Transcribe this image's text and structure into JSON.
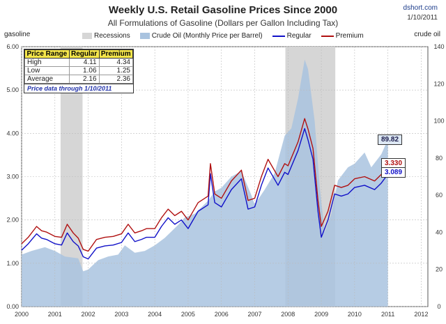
{
  "header": {
    "title": "Weekly U.S. Retail Gasoline Prices Since 2000",
    "subtitle": "All Formulations of Gasoline (Dollars per Gallon Including Tax)",
    "source": "dshort.com",
    "date": "1/10/2011"
  },
  "legend": {
    "recessions": "Recessions",
    "crude": "Crude Oil (Monthly Price per Barrel)",
    "regular": "Regular",
    "premium": "Premium"
  },
  "colors": {
    "regular": "#1010c8",
    "premium": "#b01010",
    "crude": "#a9c3df",
    "recession": "#d6d6d6"
  },
  "table": {
    "headers": [
      "Price Range",
      "Regular",
      "Premium"
    ],
    "rows": [
      [
        "High",
        "4.11",
        "4.34"
      ],
      [
        "Low",
        "1.06",
        "1.25"
      ],
      [
        "Average",
        "2.16",
        "2.36"
      ]
    ],
    "note": "Price data through 1/10/2011"
  },
  "callouts": {
    "crude": "89.82",
    "premium": "3.330",
    "regular": "3.089"
  },
  "chart_data": {
    "type": "line",
    "title": "Weekly U.S. Retail Gasoline Prices Since 2000",
    "ylabel": "gasoline",
    "y2label": "crude oil",
    "xlim": [
      2000,
      2012.2
    ],
    "ylim": [
      0,
      6
    ],
    "y2lim": [
      0,
      140
    ],
    "x_ticks": [
      "2000",
      "2001",
      "2002",
      "2003",
      "2004",
      "2005",
      "2006",
      "2007",
      "2008",
      "2009",
      "2010",
      "2011",
      "2012"
    ],
    "y_ticks": [
      "0.00",
      "1.00",
      "2.00",
      "3.00",
      "4.00",
      "5.00",
      "6.00"
    ],
    "y2_ticks": [
      "0",
      "20",
      "40",
      "60",
      "80",
      "100",
      "120",
      "140"
    ],
    "recessions": [
      [
        2001.17,
        2001.83
      ],
      [
        2007.92,
        2009.42
      ]
    ],
    "series": [
      {
        "name": "Regular",
        "x": [
          2000.0,
          2000.2,
          2000.45,
          2000.6,
          2000.75,
          2001.0,
          2001.2,
          2001.37,
          2001.55,
          2001.7,
          2001.85,
          2002.0,
          2002.25,
          2002.5,
          2002.75,
          2003.0,
          2003.2,
          2003.4,
          2003.6,
          2003.75,
          2004.0,
          2004.2,
          2004.4,
          2004.6,
          2004.8,
          2005.0,
          2005.3,
          2005.6,
          2005.67,
          2005.8,
          2006.0,
          2006.3,
          2006.6,
          2006.8,
          2007.0,
          2007.2,
          2007.4,
          2007.7,
          2007.9,
          2008.0,
          2008.3,
          2008.5,
          2008.6,
          2008.75,
          2008.9,
          2009.0,
          2009.2,
          2009.4,
          2009.6,
          2009.8,
          2010.0,
          2010.3,
          2010.6,
          2010.8,
          2011.03
        ],
        "values": [
          1.3,
          1.45,
          1.68,
          1.58,
          1.55,
          1.45,
          1.42,
          1.7,
          1.5,
          1.4,
          1.15,
          1.1,
          1.35,
          1.4,
          1.42,
          1.48,
          1.7,
          1.5,
          1.55,
          1.6,
          1.6,
          1.85,
          2.05,
          1.9,
          2.0,
          1.8,
          2.2,
          2.35,
          3.07,
          2.4,
          2.3,
          2.7,
          2.95,
          2.25,
          2.3,
          2.8,
          3.2,
          2.8,
          3.1,
          3.05,
          3.6,
          4.11,
          3.85,
          3.4,
          2.2,
          1.6,
          2.0,
          2.6,
          2.55,
          2.6,
          2.75,
          2.8,
          2.7,
          2.85,
          3.09
        ]
      },
      {
        "name": "Premium",
        "x": [
          2000.0,
          2000.2,
          2000.45,
          2000.6,
          2000.75,
          2001.0,
          2001.2,
          2001.37,
          2001.55,
          2001.7,
          2001.85,
          2002.0,
          2002.25,
          2002.5,
          2002.75,
          2003.0,
          2003.2,
          2003.4,
          2003.6,
          2003.75,
          2004.0,
          2004.2,
          2004.4,
          2004.6,
          2004.8,
          2005.0,
          2005.3,
          2005.6,
          2005.67,
          2005.8,
          2006.0,
          2006.3,
          2006.6,
          2006.8,
          2007.0,
          2007.2,
          2007.4,
          2007.7,
          2007.9,
          2008.0,
          2008.3,
          2008.5,
          2008.6,
          2008.75,
          2008.9,
          2009.0,
          2009.2,
          2009.4,
          2009.6,
          2009.8,
          2010.0,
          2010.3,
          2010.6,
          2010.8,
          2011.03
        ],
        "values": [
          1.45,
          1.6,
          1.85,
          1.75,
          1.72,
          1.62,
          1.6,
          1.9,
          1.7,
          1.58,
          1.32,
          1.28,
          1.55,
          1.6,
          1.62,
          1.68,
          1.9,
          1.7,
          1.75,
          1.8,
          1.8,
          2.05,
          2.25,
          2.1,
          2.2,
          2.0,
          2.4,
          2.55,
          3.3,
          2.6,
          2.5,
          2.9,
          3.15,
          2.45,
          2.5,
          3.0,
          3.4,
          3.0,
          3.3,
          3.25,
          3.8,
          4.34,
          4.1,
          3.65,
          2.45,
          1.85,
          2.2,
          2.8,
          2.75,
          2.8,
          2.95,
          3.0,
          2.9,
          3.05,
          3.33
        ]
      },
      {
        "name": "Crude Oil",
        "axis": "right",
        "x": [
          2000.0,
          2000.3,
          2000.7,
          2001.0,
          2001.3,
          2001.7,
          2001.85,
          2002.0,
          2002.3,
          2002.6,
          2002.9,
          2003.1,
          2003.4,
          2003.7,
          2004.0,
          2004.3,
          2004.7,
          2004.9,
          2005.2,
          2005.6,
          2005.8,
          2006.0,
          2006.3,
          2006.6,
          2006.9,
          2007.0,
          2007.3,
          2007.6,
          2007.9,
          2008.1,
          2008.3,
          2008.5,
          2008.6,
          2008.8,
          2008.95,
          2009.1,
          2009.3,
          2009.5,
          2009.8,
          2010.0,
          2010.3,
          2010.5,
          2010.8,
          2011.0
        ],
        "values": [
          28,
          30,
          32,
          30,
          27,
          26,
          19,
          20,
          25,
          27,
          28,
          33,
          29,
          30,
          33,
          37,
          44,
          48,
          50,
          57,
          62,
          64,
          70,
          73,
          60,
          55,
          63,
          72,
          92,
          96,
          112,
          133,
          128,
          100,
          65,
          40,
          50,
          68,
          75,
          77,
          83,
          75,
          82,
          90
        ]
      }
    ]
  }
}
